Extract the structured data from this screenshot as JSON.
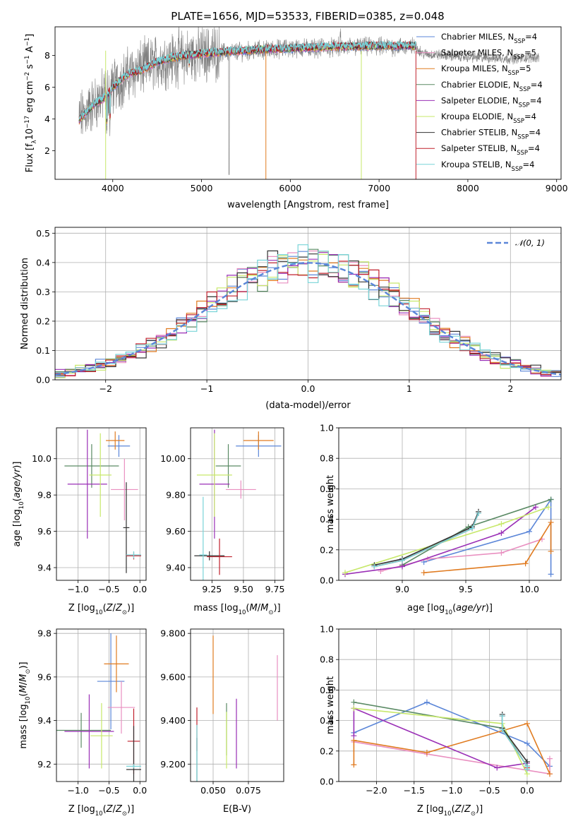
{
  "figure": {
    "title": "PLATE=1656, MJD=53533, FIBERID=0385, z=0.048"
  },
  "palette": {
    "Chabrier MILES": "#5b86d8",
    "Salpeter MILES": "#e98fc0",
    "Kroupa MILES": "#e07b20",
    "Chabrier ELODIE": "#5a8a64",
    "Salpeter ELODIE": "#9a2fb6",
    "Kroupa ELODIE": "#c7e86a",
    "Chabrier STELIB": "#333333",
    "Salpeter STELIB": "#c0202c",
    "Kroupa STELIB": "#78d4d8",
    "spectrum": "#808080",
    "gaussian": "#5b86d8"
  },
  "chart_data": [
    {
      "id": "spectrum",
      "type": "line",
      "title": "PLATE=1656, MJD=53533, FIBERID=0385, z=0.048",
      "xlabel": "wavelength [Angstrom, rest frame]",
      "ylabel": "Flux [f_λ 10^-17 erg cm^-2 s^-1 A^-1]",
      "xlim": [
        3350,
        9050
      ],
      "ylim": [
        0.2,
        9.8
      ],
      "xticks": [
        4000,
        5000,
        6000,
        7000,
        8000,
        9000
      ],
      "yticks": [
        2,
        4,
        6,
        8
      ],
      "legend_position": "top-right",
      "legend": [
        {
          "model": "Chabrier MILES",
          "n_ssp": 4
        },
        {
          "model": "Salpeter MILES",
          "n_ssp": 5
        },
        {
          "model": "Kroupa MILES",
          "n_ssp": 5
        },
        {
          "model": "Chabrier ELODIE",
          "n_ssp": 4
        },
        {
          "model": "Salpeter ELODIE",
          "n_ssp": 4
        },
        {
          "model": "Kroupa ELODIE",
          "n_ssp": 4
        },
        {
          "model": "Chabrier STELIB",
          "n_ssp": 4
        },
        {
          "model": "Salpeter STELIB",
          "n_ssp": 4
        },
        {
          "model": "Kroupa STELIB",
          "n_ssp": 4
        }
      ],
      "data_wavelength_range": [
        3620,
        8800
      ],
      "model_continuum": {
        "x": [
          3620,
          3700,
          3800,
          3900,
          3950,
          4000,
          4100,
          4200,
          4300,
          4400,
          4500,
          4700,
          5000,
          5300,
          5600,
          6000,
          6500,
          7000,
          7400
        ],
        "y": [
          3.9,
          4.4,
          5.0,
          5.3,
          5.6,
          6.0,
          6.5,
          6.9,
          7.0,
          7.3,
          7.6,
          7.9,
          8.1,
          8.25,
          8.35,
          8.45,
          8.55,
          8.6,
          8.6
        ]
      },
      "spectrum_continuum": {
        "x": [
          3620,
          3800,
          4000,
          4200,
          4500,
          5000,
          6000,
          7000,
          7400,
          7500,
          8000,
          8500,
          8800
        ],
        "y": [
          4.0,
          5.0,
          6.0,
          6.9,
          7.6,
          8.1,
          8.45,
          8.55,
          8.55,
          8.1,
          7.9,
          7.8,
          7.9
        ]
      }
    },
    {
      "id": "residual-histogram",
      "type": "line",
      "xlabel": "(data-model)/error",
      "ylabel": "Normed distribution",
      "xlim": [
        -2.5,
        2.5
      ],
      "ylim": [
        0,
        0.52
      ],
      "xticks": [
        -2,
        -1,
        0,
        1,
        2
      ],
      "yticks": [
        0.0,
        0.1,
        0.2,
        0.3,
        0.4,
        0.5
      ],
      "grid": true,
      "legend_position": "top-right",
      "gaussian_label": "𝒩(0, 1)",
      "bin_width": 0.1,
      "series_note": "nine step histograms, one per model, scattered around the normal curve"
    },
    {
      "id": "age-vs-Z",
      "type": "scatter",
      "xlabel": "Z [log10(Z/Z⊙)]",
      "ylabel": "age [log10(age/yr)]",
      "xlim": [
        -1.35,
        0.1
      ],
      "ylim": [
        9.33,
        10.17
      ],
      "xticks": [
        -1.0,
        -0.5,
        0.0
      ],
      "yticks": [
        9.4,
        9.6,
        9.8,
        10.0
      ],
      "grid": true,
      "points": [
        {
          "model": "Chabrier MILES",
          "x": -0.34,
          "xerr": 0.18,
          "y": 10.07,
          "yerr": 0.06
        },
        {
          "model": "Kroupa MILES",
          "x": -0.4,
          "xerr": 0.15,
          "y": 10.1,
          "yerr": 0.05
        },
        {
          "model": "Chabrier ELODIE",
          "x": -0.78,
          "xerr": 0.44,
          "y": 9.96,
          "yerr": 0.12
        },
        {
          "model": "Salpeter ELODIE",
          "x": -0.85,
          "xerr": 0.32,
          "y": 9.86,
          "yerr": 0.3
        },
        {
          "model": "Kroupa ELODIE",
          "x": -0.64,
          "xerr": 0.18,
          "y": 9.91,
          "yerr": 0.23
        },
        {
          "model": "Salpeter MILES",
          "x": -0.25,
          "xerr": 0.22,
          "y": 9.83,
          "yerr": 0.17
        },
        {
          "model": "Chabrier STELIB",
          "x": -0.22,
          "xerr": 0.05,
          "y": 9.62,
          "yerr": 0.25
        },
        {
          "model": "Salpeter STELIB",
          "x": -0.1,
          "xerr": 0.12,
          "y": 9.465,
          "yerr": 0.02
        },
        {
          "model": "Kroupa STELIB",
          "x": -0.1,
          "xerr": 0.12,
          "y": 9.47,
          "yerr": 0.02
        }
      ]
    },
    {
      "id": "age-vs-mass",
      "type": "scatter",
      "xlabel": "mass [log10(M/M⊙)]",
      "ylabel": "",
      "xlim": [
        9.08,
        9.82
      ],
      "ylim": [
        9.33,
        10.17
      ],
      "xticks": [
        9.25,
        9.5,
        9.75
      ],
      "yticks": [
        9.4,
        9.6,
        9.8,
        10.0
      ],
      "grid": true,
      "points": [
        {
          "model": "Chabrier MILES",
          "x": 9.62,
          "xerr": 0.18,
          "y": 10.07,
          "yerr": 0.06
        },
        {
          "model": "Kroupa MILES",
          "x": 9.62,
          "xerr": 0.12,
          "y": 10.1,
          "yerr": 0.05
        },
        {
          "model": "Chabrier ELODIE",
          "x": 9.38,
          "xerr": 0.1,
          "y": 9.96,
          "yerr": 0.12
        },
        {
          "model": "Salpeter ELODIE",
          "x": 9.27,
          "xerr": 0.12,
          "y": 9.86,
          "yerr": 0.3
        },
        {
          "model": "Kroupa ELODIE",
          "x": 9.27,
          "xerr": 0.14,
          "y": 9.91,
          "yerr": 0.23
        },
        {
          "model": "Salpeter MILES",
          "x": 9.48,
          "xerr": 0.12,
          "y": 9.83,
          "yerr": 0.05
        },
        {
          "model": "Chabrier STELIB",
          "x": 9.23,
          "xerr": 0.12,
          "y": 9.465,
          "yerr": 0.025
        },
        {
          "model": "Salpeter STELIB",
          "x": 9.31,
          "xerr": 0.1,
          "y": 9.46,
          "yerr": 0.1
        },
        {
          "model": "Kroupa STELIB",
          "x": 9.18,
          "xerr": 0.03,
          "y": 9.47,
          "yerr": 0.32
        }
      ]
    },
    {
      "id": "mass-weight-vs-age",
      "type": "line",
      "xlabel": "age [log10(age/yr)]",
      "ylabel": "mass weight",
      "xlim": [
        8.5,
        10.25
      ],
      "ylim": [
        0.0,
        1.0
      ],
      "xticks": [
        9.0,
        9.5,
        10.0
      ],
      "yticks": [
        0.0,
        0.2,
        0.4,
        0.6,
        0.8,
        1.0
      ],
      "grid": true,
      "series": [
        {
          "model": "Chabrier MILES",
          "x": [
            9.17,
            10.0,
            10.17,
            10.17
          ],
          "y": [
            0.12,
            0.32,
            0.53,
            0.04
          ]
        },
        {
          "model": "Salpeter MILES",
          "x": [
            8.83,
            9.2,
            9.78,
            10.1
          ],
          "y": [
            0.06,
            0.14,
            0.18,
            0.27
          ]
        },
        {
          "model": "Kroupa MILES",
          "x": [
            9.17,
            9.97,
            10.17,
            10.17
          ],
          "y": [
            0.05,
            0.11,
            0.38,
            0.19
          ]
        },
        {
          "model": "Chabrier ELODIE",
          "x": [
            9.0,
            9.52,
            10.17
          ],
          "y": [
            0.1,
            0.35,
            0.53
          ]
        },
        {
          "model": "Salpeter ELODIE",
          "x": [
            8.55,
            9.0,
            9.78,
            10.05
          ],
          "y": [
            0.04,
            0.09,
            0.31,
            0.48
          ]
        },
        {
          "model": "Kroupa ELODIE",
          "x": [
            8.55,
            9.78,
            10.15
          ],
          "y": [
            0.05,
            0.37,
            0.48
          ]
        },
        {
          "model": "Chabrier STELIB",
          "x": [
            8.78,
            9.0,
            9.55,
            9.6
          ],
          "y": [
            0.1,
            0.14,
            0.35,
            0.45
          ]
        },
        {
          "model": "Salpeter STELIB",
          "x": [
            8.78,
            9.0,
            9.55,
            9.6
          ],
          "y": [
            0.09,
            0.13,
            0.34,
            0.44
          ]
        },
        {
          "model": "Kroupa STELIB",
          "x": [
            8.78,
            9.0,
            9.55,
            9.6
          ],
          "y": [
            0.09,
            0.13,
            0.34,
            0.44
          ]
        }
      ]
    },
    {
      "id": "mass-vs-Z",
      "type": "scatter",
      "xlabel": "Z [log10(Z/Z⊙)]",
      "ylabel": "mass [log10(M/M⊙)]",
      "xlim": [
        -1.35,
        0.1
      ],
      "ylim": [
        9.12,
        9.82
      ],
      "xticks": [
        -1.0,
        -0.5,
        0.0
      ],
      "yticks": [
        9.2,
        9.4,
        9.6,
        9.8
      ],
      "grid": true,
      "points": [
        {
          "model": "Chabrier MILES",
          "x": -0.47,
          "xerr": 0.22,
          "y": 9.58,
          "yerr": 0.22
        },
        {
          "model": "Kroupa MILES",
          "x": -0.38,
          "xerr": 0.2,
          "y": 9.66,
          "yerr": 0.13
        },
        {
          "model": "Salpeter MILES",
          "x": -0.3,
          "xerr": 0.22,
          "y": 9.46,
          "yerr": 0.12
        },
        {
          "model": "Chabrier ELODIE",
          "x": -0.95,
          "xerr": 0.48,
          "y": 9.355,
          "yerr": 0.08
        },
        {
          "model": "Salpeter ELODIE",
          "x": -0.82,
          "xerr": 0.4,
          "y": 9.35,
          "yerr": 0.17
        },
        {
          "model": "Kroupa ELODIE",
          "x": -0.62,
          "xerr": 0.18,
          "y": 9.33,
          "yerr": 0.15
        },
        {
          "model": "Salpeter STELIB",
          "x": -0.1,
          "xerr": 0.1,
          "y": 9.305,
          "yerr": 0.15
        },
        {
          "model": "Chabrier STELIB",
          "x": -0.1,
          "xerr": 0.12,
          "y": 9.175,
          "yerr": 0.2
        },
        {
          "model": "Kroupa STELIB",
          "x": -0.1,
          "xerr": 0.12,
          "y": 9.19,
          "yerr": 0.01
        }
      ]
    },
    {
      "id": "mass-vs-EBV",
      "type": "scatter",
      "xlabel": "E(B-V)",
      "ylabel": "",
      "xlim": [
        0.034,
        0.1
      ],
      "ylim": [
        9.12,
        9.82
      ],
      "xticks": [
        0.05,
        0.075
      ],
      "yticks": [
        9.2,
        9.4,
        9.6,
        9.8
      ],
      "grid": true,
      "points": [
        {
          "model": "Kroupa MILES",
          "x": 0.05,
          "y": 9.61,
          "yerr": 0.18
        },
        {
          "model": "Salpeter MILES",
          "x": 0.0955,
          "y": 9.55,
          "yerr": 0.15
        },
        {
          "model": "Salpeter STELIB",
          "x": 0.0385,
          "y": 9.36,
          "yerr": 0.1
        },
        {
          "model": "Chabrier STELIB",
          "x": 0.0385,
          "y": 9.22,
          "yerr": 0.1
        },
        {
          "model": "Kroupa STELIB",
          "x": 0.0385,
          "y": 9.24,
          "yerr": 0.14
        },
        {
          "model": "Chabrier ELODIE",
          "x": 0.0595,
          "y": 9.36,
          "yerr": 0.12
        },
        {
          "model": "Kroupa ELODIE",
          "x": 0.0595,
          "y": 9.31,
          "yerr": 0.13
        },
        {
          "model": "Salpeter ELODIE",
          "x": 0.0665,
          "y": 9.34,
          "yerr": 0.16
        }
      ]
    },
    {
      "id": "mass-weight-vs-Z",
      "type": "line",
      "xlabel": "Z [log10(Z/Z⊙)]",
      "ylabel": "mass weight",
      "xlim": [
        -2.5,
        0.45
      ],
      "ylim": [
        0.0,
        1.0
      ],
      "xticks": [
        -2.0,
        -1.5,
        -1.0,
        -0.5,
        0.0
      ],
      "yticks": [
        0.0,
        0.2,
        0.4,
        0.6,
        0.8,
        1.0
      ],
      "grid": true,
      "series": [
        {
          "model": "Chabrier MILES",
          "x": [
            -2.3,
            -1.33,
            0.0,
            0.3
          ],
          "y": [
            0.32,
            0.52,
            0.25,
            0.1
          ]
        },
        {
          "model": "Salpeter MILES",
          "x": [
            -2.3,
            -1.33,
            0.3,
            0.3
          ],
          "y": [
            0.26,
            0.18,
            0.05,
            0.15
          ]
        },
        {
          "model": "Kroupa MILES",
          "x": [
            -2.3,
            -2.3,
            -1.33,
            0.0,
            0.3
          ],
          "y": [
            0.11,
            0.27,
            0.19,
            0.38,
            0.05
          ]
        },
        {
          "model": "Chabrier ELODIE",
          "x": [
            -2.3,
            -0.33,
            0.0
          ],
          "y": [
            0.52,
            0.35,
            0.1
          ]
        },
        {
          "model": "Salpeter ELODIE",
          "x": [
            -2.3,
            -2.3,
            -0.4,
            0.0
          ],
          "y": [
            0.3,
            0.48,
            0.09,
            0.12
          ]
        },
        {
          "model": "Kroupa ELODIE",
          "x": [
            -2.3,
            -0.33,
            0.0
          ],
          "y": [
            0.48,
            0.38,
            0.05
          ]
        },
        {
          "model": "Chabrier STELIB",
          "x": [
            -0.33,
            -0.33,
            0.0,
            0.0
          ],
          "y": [
            0.44,
            0.35,
            0.13,
            0.1
          ]
        },
        {
          "model": "Salpeter STELIB",
          "x": [
            -0.33,
            -0.33,
            0.0,
            0.0
          ],
          "y": [
            0.43,
            0.34,
            0.1,
            0.09
          ]
        },
        {
          "model": "Kroupa STELIB",
          "x": [
            -0.33,
            -0.33,
            0.0,
            0.0
          ],
          "y": [
            0.43,
            0.34,
            0.1,
            0.08
          ]
        }
      ]
    }
  ]
}
